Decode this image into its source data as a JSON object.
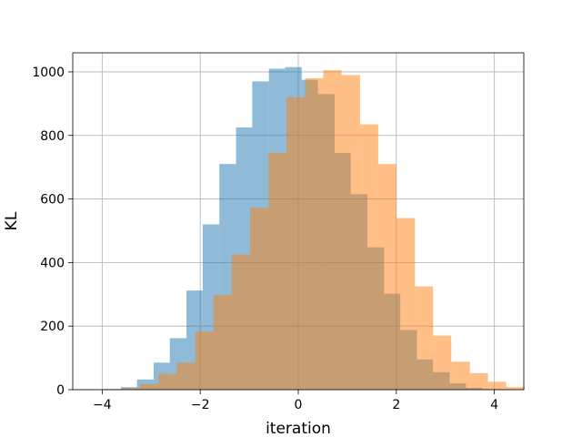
{
  "chart_data": {
    "type": "bar",
    "title": "",
    "xlabel": "iteration",
    "ylabel": "KL",
    "xlim": [
      -4.6,
      4.6
    ],
    "ylim": [
      0,
      1060
    ],
    "xticks": [
      -4,
      -2,
      0,
      2,
      4
    ],
    "xtick_labels": [
      "−4",
      "−2",
      "0",
      "2",
      "4"
    ],
    "yticks": [
      0,
      200,
      400,
      600,
      800,
      1000
    ],
    "ytick_labels": [
      "0",
      "200",
      "400",
      "600",
      "800",
      "1000"
    ],
    "grid": true,
    "legend": "none",
    "series": [
      {
        "color": "#1f77b4",
        "opacity": 0.5,
        "bins": [
          {
            "x0": -3.98,
            "x1": -3.62,
            "count": 2
          },
          {
            "x0": -3.62,
            "x1": -3.29,
            "count": 8
          },
          {
            "x0": -3.29,
            "x1": -2.95,
            "count": 32
          },
          {
            "x0": -2.95,
            "x1": -2.62,
            "count": 85
          },
          {
            "x0": -2.62,
            "x1": -2.28,
            "count": 162
          },
          {
            "x0": -2.28,
            "x1": -1.95,
            "count": 312
          },
          {
            "x0": -1.95,
            "x1": -1.61,
            "count": 520
          },
          {
            "x0": -1.61,
            "x1": -1.27,
            "count": 710
          },
          {
            "x0": -1.27,
            "x1": -0.94,
            "count": 825
          },
          {
            "x0": -0.94,
            "x1": -0.6,
            "count": 970
          },
          {
            "x0": -0.6,
            "x1": -0.27,
            "count": 1010
          },
          {
            "x0": -0.27,
            "x1": 0.07,
            "count": 1015
          },
          {
            "x0": 0.07,
            "x1": 0.4,
            "count": 975
          },
          {
            "x0": 0.4,
            "x1": 0.74,
            "count": 930
          },
          {
            "x0": 0.74,
            "x1": 1.07,
            "count": 745
          },
          {
            "x0": 1.07,
            "x1": 1.41,
            "count": 615
          },
          {
            "x0": 1.41,
            "x1": 1.75,
            "count": 448
          },
          {
            "x0": 1.75,
            "x1": 2.08,
            "count": 302
          },
          {
            "x0": 2.08,
            "x1": 2.42,
            "count": 188
          },
          {
            "x0": 2.42,
            "x1": 2.75,
            "count": 95
          },
          {
            "x0": 2.75,
            "x1": 3.09,
            "count": 55
          },
          {
            "x0": 3.09,
            "x1": 3.42,
            "count": 20
          },
          {
            "x0": 3.42,
            "x1": 3.76,
            "count": 6
          },
          {
            "x0": 3.76,
            "x1": 4.1,
            "count": 2
          }
        ]
      },
      {
        "color": "#ff7f0e",
        "opacity": 0.5,
        "bins": [
          {
            "x0": -3.6,
            "x1": -3.22,
            "count": 5
          },
          {
            "x0": -3.22,
            "x1": -2.85,
            "count": 18
          },
          {
            "x0": -2.85,
            "x1": -2.48,
            "count": 50
          },
          {
            "x0": -2.48,
            "x1": -2.1,
            "count": 85
          },
          {
            "x0": -2.1,
            "x1": -1.73,
            "count": 183
          },
          {
            "x0": -1.73,
            "x1": -1.36,
            "count": 298
          },
          {
            "x0": -1.36,
            "x1": -0.98,
            "count": 425
          },
          {
            "x0": -0.98,
            "x1": -0.61,
            "count": 572
          },
          {
            "x0": -0.61,
            "x1": -0.24,
            "count": 745
          },
          {
            "x0": -0.24,
            "x1": 0.14,
            "count": 920
          },
          {
            "x0": 0.14,
            "x1": 0.51,
            "count": 980
          },
          {
            "x0": 0.51,
            "x1": 0.88,
            "count": 1005
          },
          {
            "x0": 0.88,
            "x1": 1.26,
            "count": 990
          },
          {
            "x0": 1.26,
            "x1": 1.63,
            "count": 835
          },
          {
            "x0": 1.63,
            "x1": 2.0,
            "count": 710
          },
          {
            "x0": 2.0,
            "x1": 2.38,
            "count": 540
          },
          {
            "x0": 2.38,
            "x1": 2.75,
            "count": 325
          },
          {
            "x0": 2.75,
            "x1": 3.12,
            "count": 170
          },
          {
            "x0": 3.12,
            "x1": 3.5,
            "count": 88
          },
          {
            "x0": 3.5,
            "x1": 3.87,
            "count": 52
          },
          {
            "x0": 3.87,
            "x1": 4.24,
            "count": 25
          },
          {
            "x0": 4.24,
            "x1": 4.62,
            "count": 8
          }
        ]
      }
    ]
  }
}
